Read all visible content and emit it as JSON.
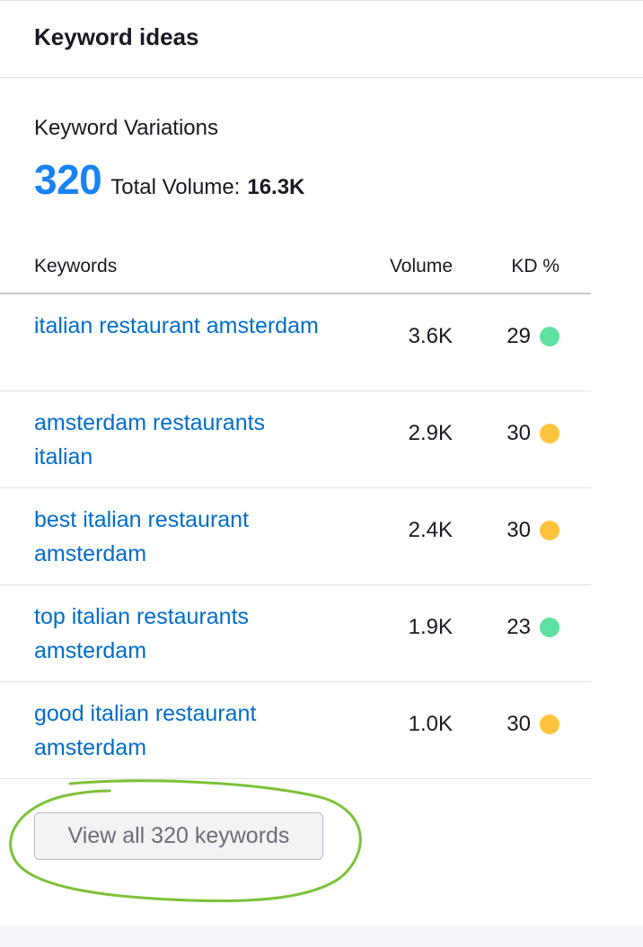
{
  "widget": {
    "title": "Keyword ideas",
    "section_label": "Keyword Variations",
    "variations_count": "320",
    "total_volume_label": "Total Volume:",
    "total_volume_value": "16.3K"
  },
  "table": {
    "columns": [
      "Keywords",
      "Volume",
      "KD %"
    ],
    "rows": [
      {
        "keyword": "italian restaurant amsterdam",
        "volume": "3.6K",
        "kd": "29",
        "kd_color": "#5ee0a0"
      },
      {
        "keyword": "amsterdam restaurants italian",
        "volume": "2.9K",
        "kd": "30",
        "kd_color": "#ffc43d"
      },
      {
        "keyword": "best italian restaurant amsterdam",
        "volume": "2.4K",
        "kd": "30",
        "kd_color": "#ffc43d"
      },
      {
        "keyword": "top italian restaurants amsterdam",
        "volume": "1.9K",
        "kd": "23",
        "kd_color": "#5ee0a0"
      },
      {
        "keyword": "good italian restaurant amsterdam",
        "volume": "1.0K",
        "kd": "30",
        "kd_color": "#ffc43d"
      }
    ]
  },
  "footer": {
    "view_all_label": "View all 320 keywords"
  },
  "colors": {
    "accent": "#1883f5",
    "link": "#006dca",
    "kd_easy": "#5ee0a0",
    "kd_possible": "#ffc43d",
    "annotation_circle": "#7dc13a"
  }
}
